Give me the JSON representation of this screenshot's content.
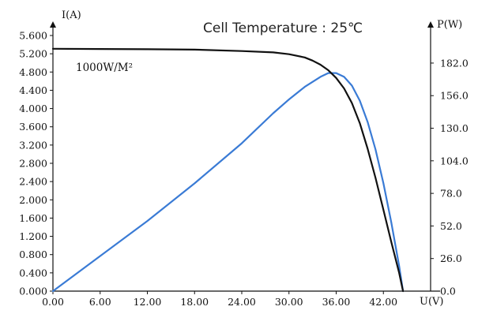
{
  "chart_data": {
    "type": "line",
    "title": "Cell Temperature : 25℃",
    "annotation": "1000W/M²",
    "x_label": "U(V)",
    "y_left_label": "I(A)",
    "y_right_label": "P(W)",
    "x_ticks": [
      "0.00",
      "6.00",
      "12.00",
      "18.00",
      "24.00",
      "30.00",
      "36.00",
      "42.00"
    ],
    "y_left_ticks": [
      "0.000",
      "0.400",
      "0.800",
      "1.200",
      "1.600",
      "2.000",
      "2.400",
      "2.800",
      "3.200",
      "3.600",
      "4.000",
      "4.400",
      "4.800",
      "5.200",
      "5.600"
    ],
    "y_right_ticks": [
      "0.0",
      "26.0",
      "52.0",
      "78.0",
      "104.0",
      "130.0",
      "156.0",
      "182.0"
    ],
    "xlim": [
      0,
      48
    ],
    "y_left_lim": [
      0,
      5.6
    ],
    "y_right_lim": [
      0,
      204
    ],
    "grid": false,
    "series": [
      {
        "axis": "left",
        "color": "#111111",
        "x": [
          0,
          6,
          12,
          18,
          24,
          28,
          30,
          32,
          33,
          34,
          35,
          36,
          37,
          38,
          39,
          40,
          41,
          42,
          43,
          44,
          44.5
        ],
        "y": [
          5.31,
          5.305,
          5.3,
          5.29,
          5.26,
          5.23,
          5.19,
          5.12,
          5.05,
          4.96,
          4.84,
          4.67,
          4.44,
          4.12,
          3.68,
          3.12,
          2.48,
          1.78,
          1.08,
          0.4,
          0.0
        ]
      },
      {
        "axis": "right",
        "color": "#3a7bd5",
        "x": [
          0,
          6,
          12,
          18,
          24,
          28,
          30,
          32,
          34,
          35,
          36,
          37,
          38,
          39,
          40,
          41,
          42,
          43,
          44,
          44.5
        ],
        "y": [
          0,
          28,
          56,
          86,
          118,
          142,
          153,
          163,
          171,
          174,
          174,
          171,
          164,
          152,
          135,
          113,
          86,
          55,
          20,
          0
        ]
      }
    ]
  }
}
